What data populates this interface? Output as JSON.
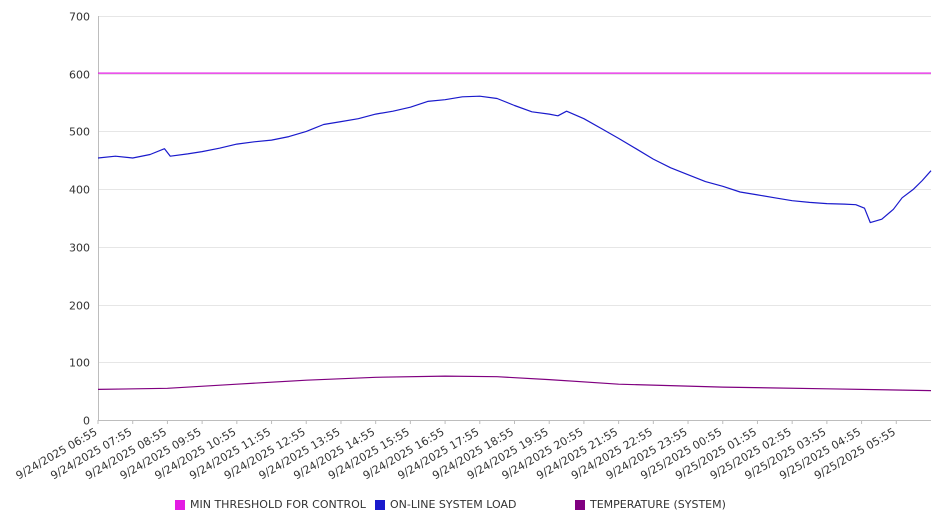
{
  "chart_data": {
    "type": "line",
    "title": "",
    "xlabel": "",
    "ylabel": "",
    "ylim": [
      0,
      700
    ],
    "y_ticks": [
      0,
      100,
      200,
      300,
      400,
      500,
      600,
      700
    ],
    "grid": true,
    "legend_position": "bottom",
    "x_tick_labels": [
      "9/24/2025 06:55",
      "9/24/2025 07:55",
      "9/24/2025 08:55",
      "9/24/2025 09:55",
      "9/24/2025 10:55",
      "9/24/2025 11:55",
      "9/24/2025 12:55",
      "9/24/2025 13:55",
      "9/24/2025 14:55",
      "9/24/2025 15:55",
      "9/24/2025 16:55",
      "9/24/2025 17:55",
      "9/24/2025 18:55",
      "9/24/2025 19:55",
      "9/24/2025 20:55",
      "9/24/2025 21:55",
      "9/24/2025 22:55",
      "9/24/2025 23:55",
      "9/25/2025 00:55",
      "9/25/2025 01:55",
      "9/25/2025 02:55",
      "9/25/2025 03:55",
      "9/25/2025 04:55",
      "9/25/2025 05:55"
    ],
    "x_range": [
      "9/24/2025 06:55",
      "9/25/2025 06:55"
    ],
    "series": [
      {
        "name": "MIN THRESHOLD FOR CONTROL",
        "color": "#e31ce3",
        "points": [
          [
            "9/24/2025 06:55",
            601
          ],
          [
            "9/25/2025 06:55",
            601
          ]
        ]
      },
      {
        "name": "ON-LINE SYSTEM LOAD",
        "color": "#1a1acc",
        "points": [
          [
            "9/24/2025 06:55",
            454
          ],
          [
            "9/24/2025 07:25",
            457
          ],
          [
            "9/24/2025 07:55",
            454
          ],
          [
            "9/24/2025 08:25",
            460
          ],
          [
            "9/24/2025 08:50",
            470
          ],
          [
            "9/24/2025 09:00",
            457
          ],
          [
            "9/24/2025 09:30",
            461
          ],
          [
            "9/24/2025 09:55",
            465
          ],
          [
            "9/24/2025 10:25",
            471
          ],
          [
            "9/24/2025 10:55",
            478
          ],
          [
            "9/24/2025 11:25",
            482
          ],
          [
            "9/24/2025 11:55",
            485
          ],
          [
            "9/24/2025 12:25",
            491
          ],
          [
            "9/24/2025 12:55",
            500
          ],
          [
            "9/24/2025 13:25",
            512
          ],
          [
            "9/24/2025 13:55",
            517
          ],
          [
            "9/24/2025 14:25",
            522
          ],
          [
            "9/24/2025 14:55",
            530
          ],
          [
            "9/24/2025 15:25",
            535
          ],
          [
            "9/24/2025 15:55",
            542
          ],
          [
            "9/24/2025 16:25",
            552
          ],
          [
            "9/24/2025 16:55",
            555
          ],
          [
            "9/24/2025 17:25",
            560
          ],
          [
            "9/24/2025 17:55",
            561
          ],
          [
            "9/24/2025 18:25",
            557
          ],
          [
            "9/24/2025 18:55",
            545
          ],
          [
            "9/24/2025 19:25",
            534
          ],
          [
            "9/24/2025 19:55",
            530
          ],
          [
            "9/24/2025 20:10",
            527
          ],
          [
            "9/24/2025 20:25",
            535
          ],
          [
            "9/24/2025 20:55",
            522
          ],
          [
            "9/24/2025 21:25",
            505
          ],
          [
            "9/24/2025 21:55",
            488
          ],
          [
            "9/24/2025 22:25",
            470
          ],
          [
            "9/24/2025 22:55",
            452
          ],
          [
            "9/24/2025 23:25",
            437
          ],
          [
            "9/24/2025 23:55",
            425
          ],
          [
            "9/25/2025 00:25",
            413
          ],
          [
            "9/25/2025 00:55",
            405
          ],
          [
            "9/25/2025 01:25",
            395
          ],
          [
            "9/25/2025 01:55",
            390
          ],
          [
            "9/25/2025 02:25",
            385
          ],
          [
            "9/25/2025 02:55",
            380
          ],
          [
            "9/25/2025 03:25",
            377
          ],
          [
            "9/25/2025 03:55",
            375
          ],
          [
            "9/25/2025 04:25",
            374
          ],
          [
            "9/25/2025 04:45",
            373
          ],
          [
            "9/25/2025 05:00",
            367
          ],
          [
            "9/25/2025 05:10",
            342
          ],
          [
            "9/25/2025 05:30",
            348
          ],
          [
            "9/25/2025 05:50",
            365
          ],
          [
            "9/25/2025 06:05",
            385
          ],
          [
            "9/25/2025 06:25",
            400
          ],
          [
            "9/25/2025 06:40",
            415
          ],
          [
            "9/25/2025 06:55",
            432
          ]
        ]
      },
      {
        "name": "TEMPERATURE (SYSTEM)",
        "color": "#800080",
        "points": [
          [
            "9/24/2025 06:55",
            53
          ],
          [
            "9/24/2025 08:55",
            55
          ],
          [
            "9/24/2025 10:55",
            62
          ],
          [
            "9/24/2025 12:55",
            69
          ],
          [
            "9/24/2025 14:55",
            74
          ],
          [
            "9/24/2025 16:55",
            76
          ],
          [
            "9/24/2025 18:25",
            75
          ],
          [
            "9/24/2025 19:55",
            70
          ],
          [
            "9/24/2025 21:55",
            62
          ],
          [
            "9/25/2025 00:55",
            57
          ],
          [
            "9/25/2025 03:55",
            54
          ],
          [
            "9/25/2025 06:55",
            51
          ]
        ]
      }
    ]
  }
}
